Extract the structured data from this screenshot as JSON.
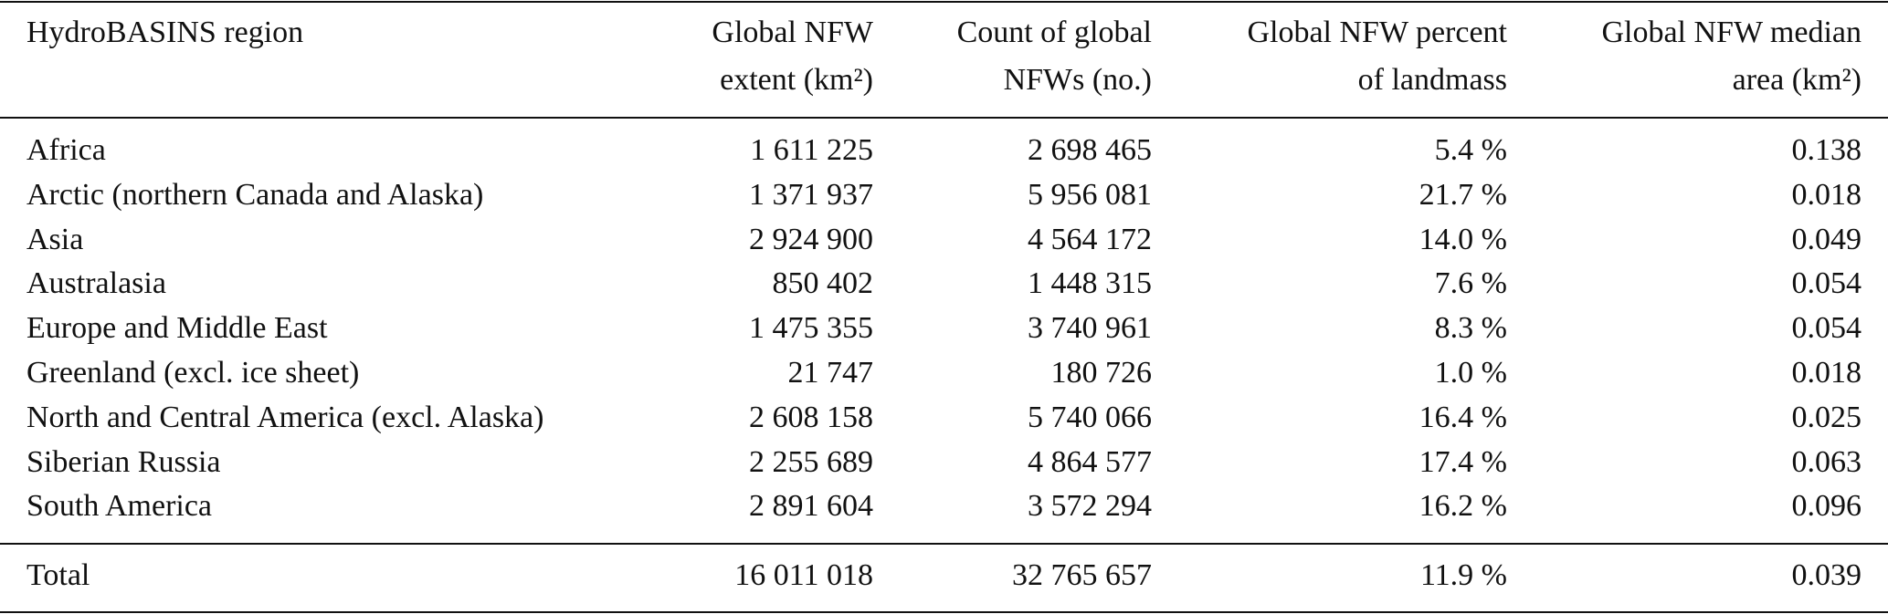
{
  "table": {
    "header": [
      [
        "HydroBASINS region"
      ],
      [
        "Global NFW",
        "extent (km²)"
      ],
      [
        "Count of global",
        "NFWs (no.)"
      ],
      [
        "Global NFW percent",
        "of landmass"
      ],
      [
        "Global NFW median",
        "area (km²)"
      ]
    ],
    "rows": [
      [
        "Africa",
        "1 611 225",
        "2 698 465",
        "5.4 %",
        "0.138"
      ],
      [
        "Arctic (northern Canada and Alaska)",
        "1 371 937",
        "5 956 081",
        "21.7 %",
        "0.018"
      ],
      [
        "Asia",
        "2 924 900",
        "4 564 172",
        "14.0 %",
        "0.049"
      ],
      [
        "Australasia",
        "850 402",
        "1 448 315",
        "7.6 %",
        "0.054"
      ],
      [
        "Europe and Middle East",
        "1 475 355",
        "3 740 961",
        "8.3 %",
        "0.054"
      ],
      [
        "Greenland (excl. ice sheet)",
        "21 747",
        "180 726",
        "1.0 %",
        "0.018"
      ],
      [
        "North and Central America (excl. Alaska)",
        "2 608 158",
        "5 740 066",
        "16.4 %",
        "0.025"
      ],
      [
        "Siberian Russia",
        "2 255 689",
        "4 864 577",
        "17.4 %",
        "0.063"
      ],
      [
        "South America",
        "2 891 604",
        "3 572 294",
        "16.2 %",
        "0.096"
      ]
    ],
    "total": [
      "Total",
      "16 011 018",
      "32 765 657",
      "11.9 %",
      "0.039"
    ]
  }
}
